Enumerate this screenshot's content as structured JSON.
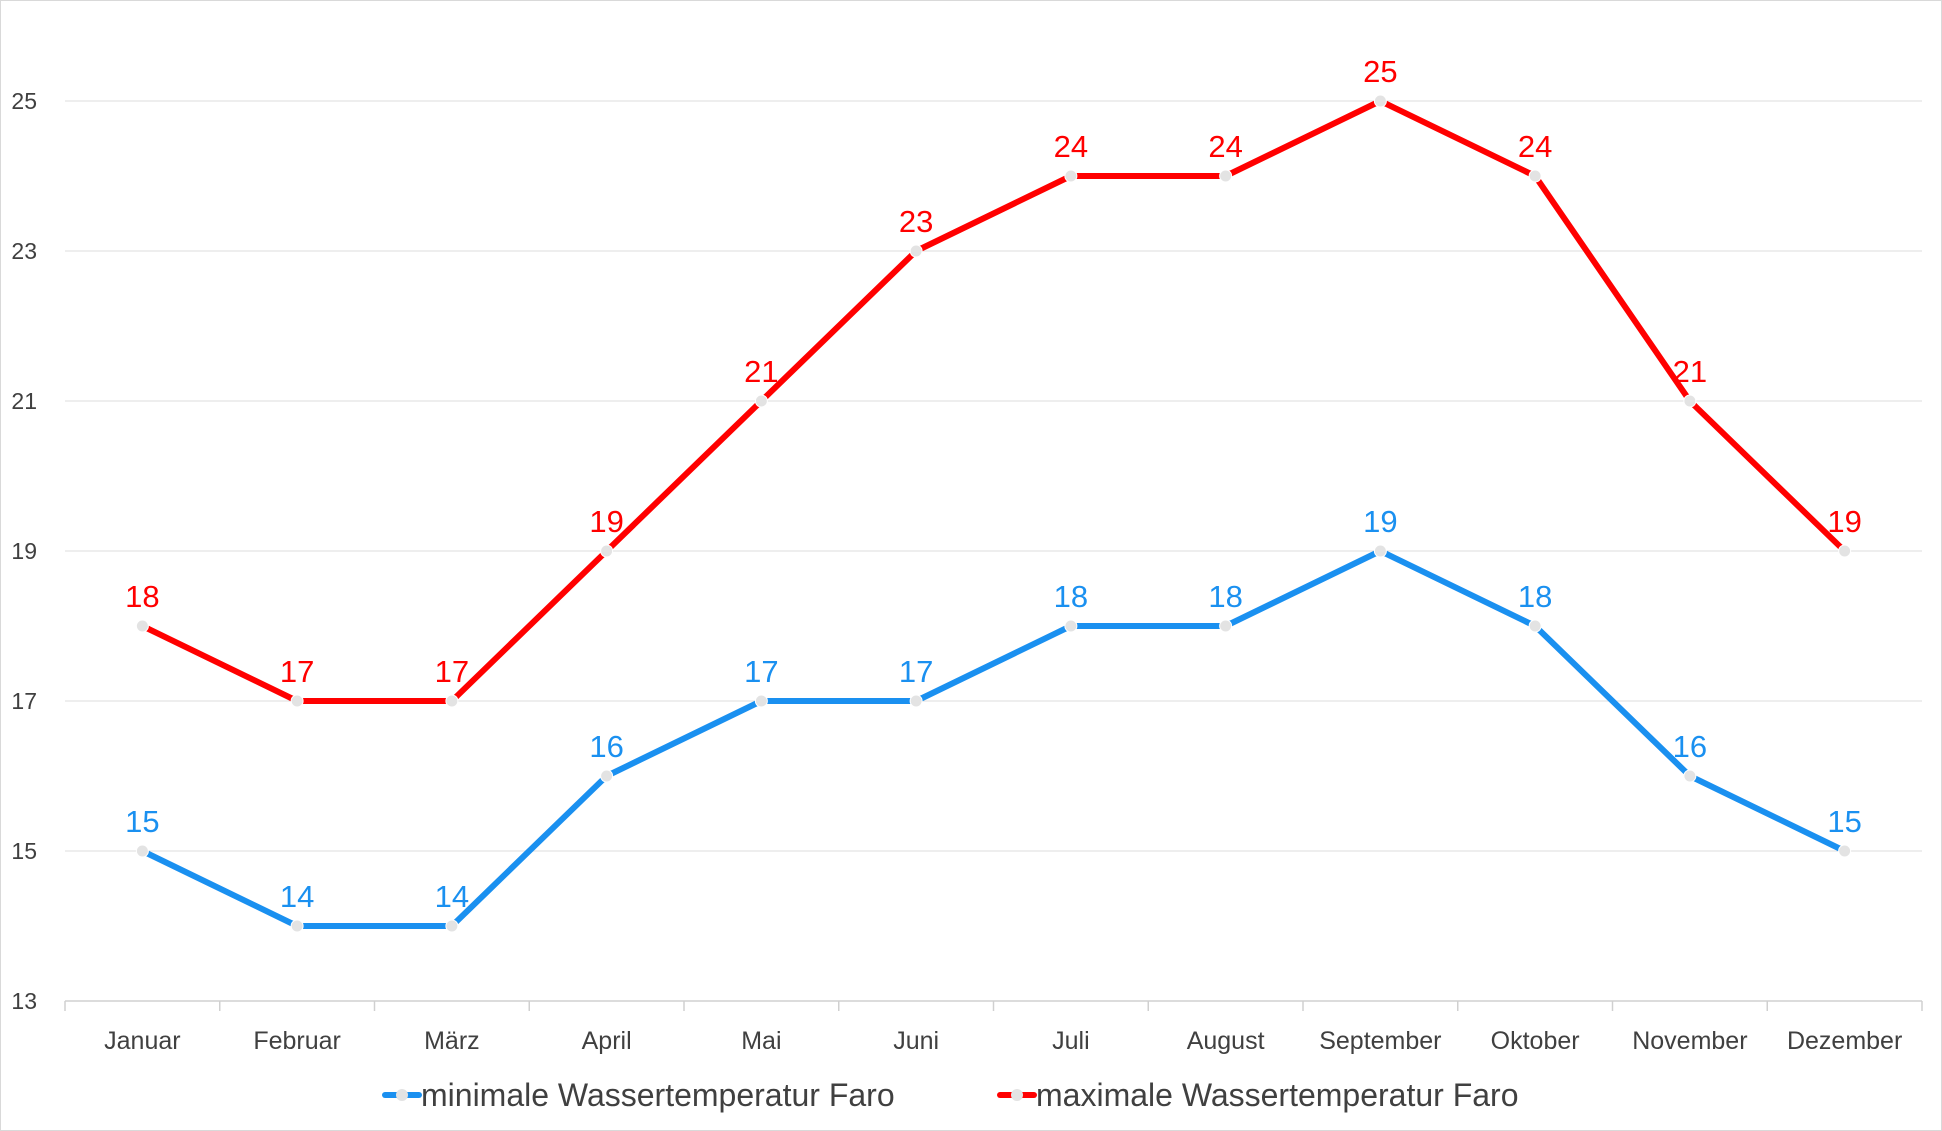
{
  "chart_data": {
    "type": "line",
    "categories": [
      "Januar",
      "Februar",
      "März",
      "April",
      "Mai",
      "Juni",
      "Juli",
      "August",
      "September",
      "Oktober",
      "November",
      "Dezember"
    ],
    "series": [
      {
        "name": "minimale Wassertemperatur Faro",
        "color": "#1a90f0",
        "values": [
          15,
          14,
          14,
          16,
          17,
          17,
          18,
          18,
          19,
          18,
          16,
          15
        ]
      },
      {
        "name": "maximale Wassertemperatur Faro",
        "color": "#ff0000",
        "values": [
          18,
          17,
          17,
          19,
          21,
          23,
          24,
          24,
          25,
          24,
          21,
          19
        ]
      }
    ],
    "yticks": [
      "13",
      "15",
      "17",
      "19",
      "21",
      "23",
      "25"
    ],
    "ylim": [
      13,
      26.3
    ],
    "grid": true,
    "data_labels": true,
    "legend_position": "bottom",
    "title": "",
    "xlabel": "",
    "ylabel": ""
  }
}
